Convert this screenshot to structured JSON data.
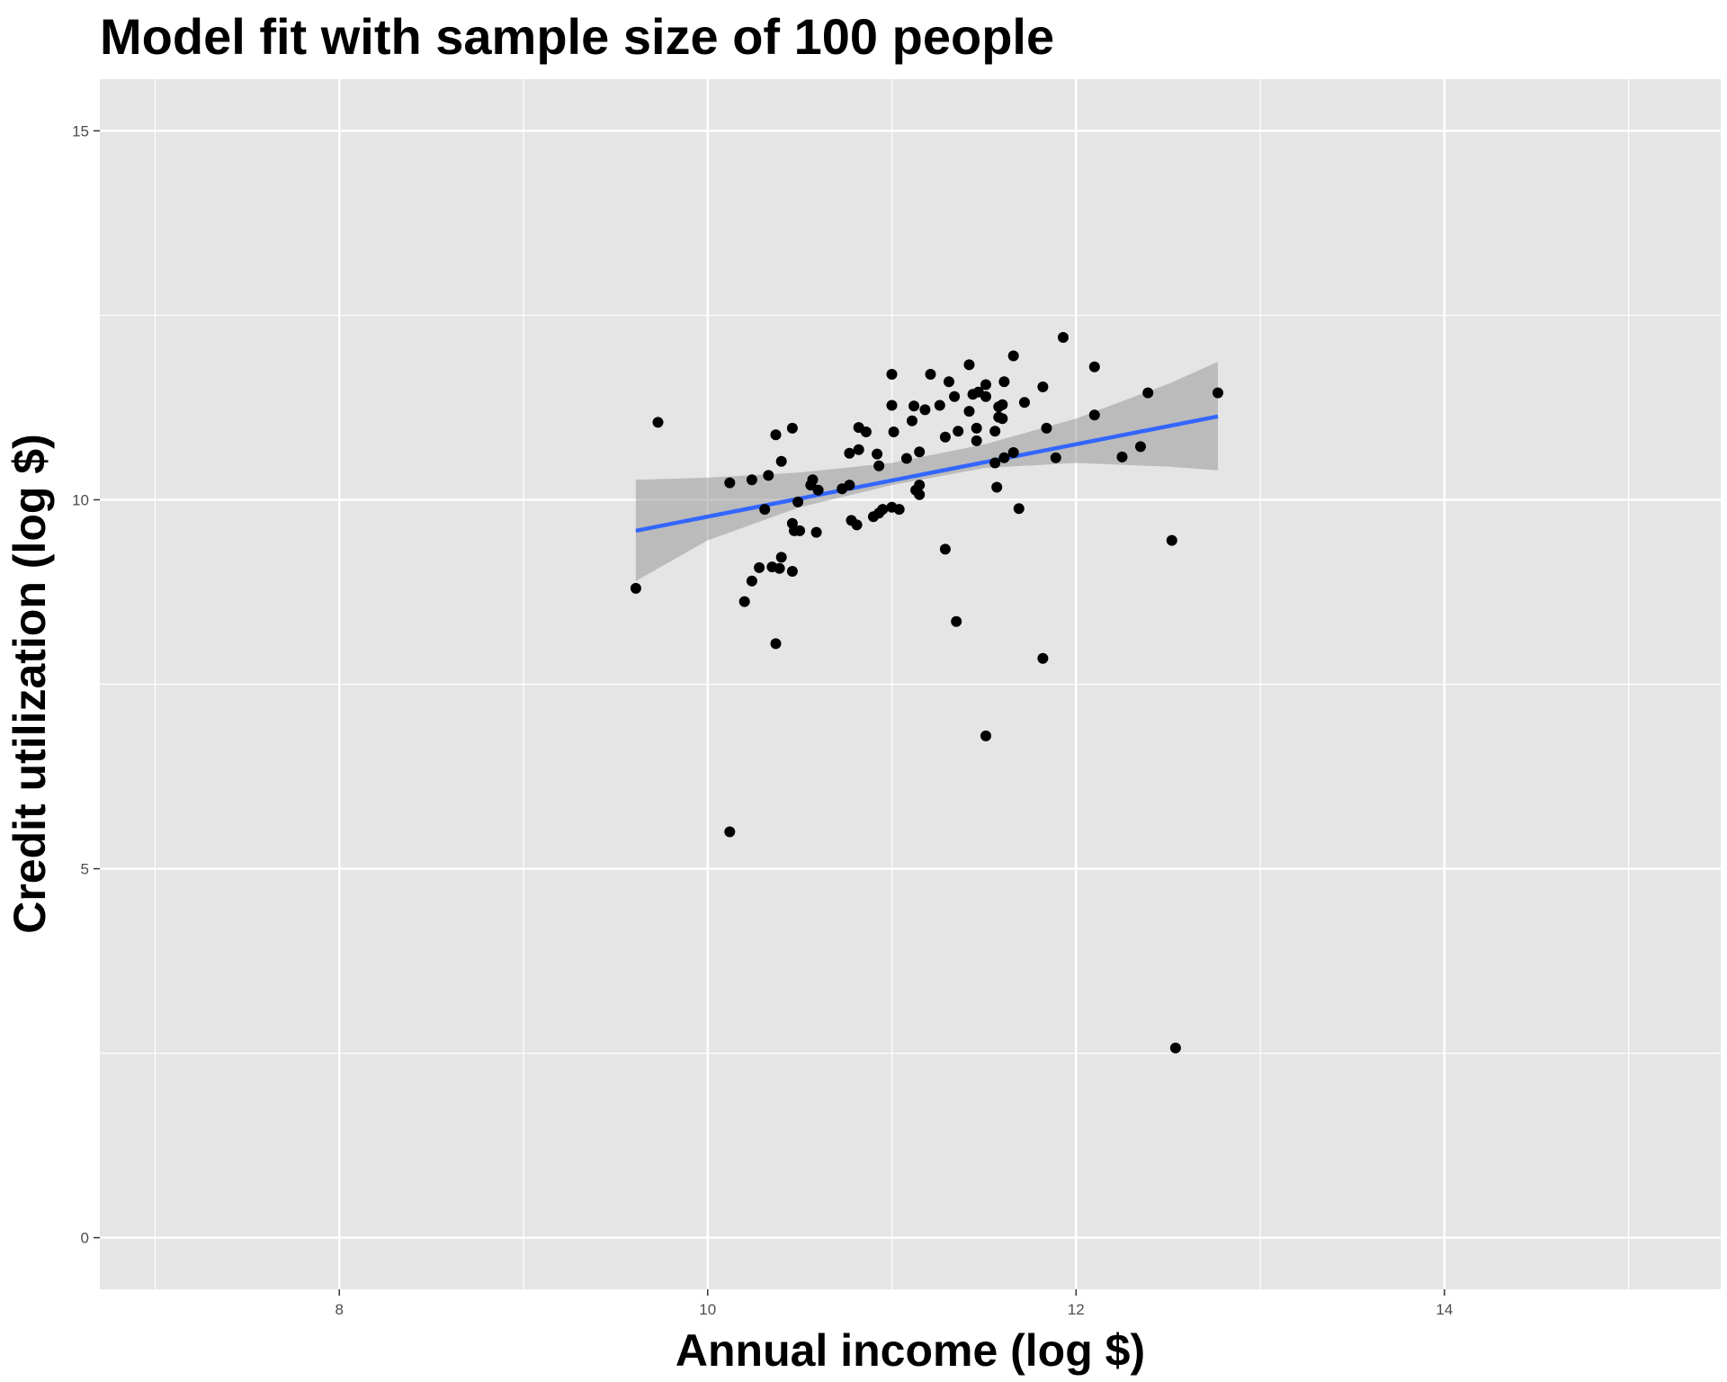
{
  "chart_data": {
    "type": "scatter",
    "title": "Model fit with sample size of 100 people",
    "xlabel": "Annual income (log $)",
    "ylabel": "Credit utilization (log $)",
    "xlim": [
      6.7,
      15.5
    ],
    "ylim": [
      -0.7,
      15.7
    ],
    "x_ticks": [
      8,
      10,
      12,
      14
    ],
    "y_ticks": [
      0,
      5,
      10,
      15
    ],
    "grid": true,
    "legend": "none",
    "colors": {
      "panel": "#e5e5e5",
      "grid": "#ffffff",
      "points": "#000000",
      "fit_line": "#3366ff",
      "confidence_band": "#999999"
    },
    "series": [
      {
        "type": "scatter",
        "points": [
          [
            9.61,
            8.8
          ],
          [
            9.73,
            11.05
          ],
          [
            10.12,
            10.23
          ],
          [
            10.12,
            5.5
          ],
          [
            10.2,
            8.62
          ],
          [
            10.24,
            8.9
          ],
          [
            10.24,
            10.27
          ],
          [
            10.28,
            9.08
          ],
          [
            10.31,
            9.87
          ],
          [
            10.33,
            10.33
          ],
          [
            10.35,
            9.09
          ],
          [
            10.37,
            10.88
          ],
          [
            10.37,
            8.05
          ],
          [
            10.39,
            9.07
          ],
          [
            10.4,
            9.22
          ],
          [
            10.4,
            10.52
          ],
          [
            10.46,
            10.97
          ],
          [
            10.46,
            9.03
          ],
          [
            10.46,
            9.68
          ],
          [
            10.47,
            9.58
          ],
          [
            10.49,
            9.97
          ],
          [
            10.5,
            9.58
          ],
          [
            10.56,
            10.2
          ],
          [
            10.57,
            10.27
          ],
          [
            10.59,
            9.56
          ],
          [
            10.6,
            10.13
          ],
          [
            10.73,
            10.15
          ],
          [
            10.77,
            10.2
          ],
          [
            10.77,
            10.63
          ],
          [
            10.78,
            9.72
          ],
          [
            10.81,
            9.66
          ],
          [
            10.82,
            10.98
          ],
          [
            10.82,
            10.68
          ],
          [
            10.86,
            10.92
          ],
          [
            10.9,
            9.77
          ],
          [
            10.92,
            10.62
          ],
          [
            10.93,
            9.82
          ],
          [
            10.93,
            10.46
          ],
          [
            10.95,
            9.87
          ],
          [
            11.0,
            11.7
          ],
          [
            11.0,
            11.28
          ],
          [
            11.0,
            9.9
          ],
          [
            11.01,
            10.92
          ],
          [
            11.04,
            9.87
          ],
          [
            11.08,
            10.56
          ],
          [
            11.11,
            11.07
          ],
          [
            11.12,
            11.27
          ],
          [
            11.13,
            10.13
          ],
          [
            11.15,
            10.07
          ],
          [
            11.15,
            10.2
          ],
          [
            11.15,
            10.65
          ],
          [
            11.18,
            11.22
          ],
          [
            11.21,
            11.7
          ],
          [
            11.26,
            11.28
          ],
          [
            11.29,
            10.85
          ],
          [
            11.29,
            9.33
          ],
          [
            11.31,
            11.6
          ],
          [
            11.34,
            11.4
          ],
          [
            11.35,
            8.35
          ],
          [
            11.36,
            10.93
          ],
          [
            11.42,
            11.83
          ],
          [
            11.42,
            11.2
          ],
          [
            11.44,
            11.43
          ],
          [
            11.46,
            10.97
          ],
          [
            11.46,
            10.8
          ],
          [
            11.47,
            11.46
          ],
          [
            11.51,
            11.4
          ],
          [
            11.51,
            11.56
          ],
          [
            11.51,
            6.8
          ],
          [
            11.56,
            10.5
          ],
          [
            11.56,
            10.93
          ],
          [
            11.57,
            10.17
          ],
          [
            11.58,
            11.26
          ],
          [
            11.58,
            11.12
          ],
          [
            11.6,
            11.1
          ],
          [
            11.6,
            11.29
          ],
          [
            11.61,
            11.6
          ],
          [
            11.61,
            10.57
          ],
          [
            11.66,
            11.95
          ],
          [
            11.66,
            10.64
          ],
          [
            11.69,
            9.88
          ],
          [
            11.72,
            11.32
          ],
          [
            11.82,
            11.53
          ],
          [
            11.82,
            7.85
          ],
          [
            11.84,
            10.97
          ],
          [
            11.89,
            10.57
          ],
          [
            11.93,
            12.2
          ],
          [
            12.1,
            11.8
          ],
          [
            12.1,
            11.15
          ],
          [
            12.25,
            10.58
          ],
          [
            12.35,
            10.72
          ],
          [
            12.39,
            11.45
          ],
          [
            12.52,
            9.45
          ],
          [
            12.54,
            2.57
          ],
          [
            12.77,
            11.45
          ]
        ]
      },
      {
        "type": "line",
        "name": "",
        "points": [
          [
            9.61,
            9.58
          ],
          [
            12.77,
            11.13
          ]
        ]
      },
      {
        "type": "band",
        "name": "",
        "x": [
          9.61,
          10.0,
          10.5,
          11.0,
          11.5,
          12.0,
          12.5,
          12.77
        ],
        "lower": [
          8.9,
          9.45,
          9.9,
          10.2,
          10.43,
          10.5,
          10.45,
          10.4
        ],
        "upper": [
          10.27,
          10.3,
          10.37,
          10.5,
          10.75,
          11.1,
          11.57,
          11.87
        ]
      }
    ]
  }
}
